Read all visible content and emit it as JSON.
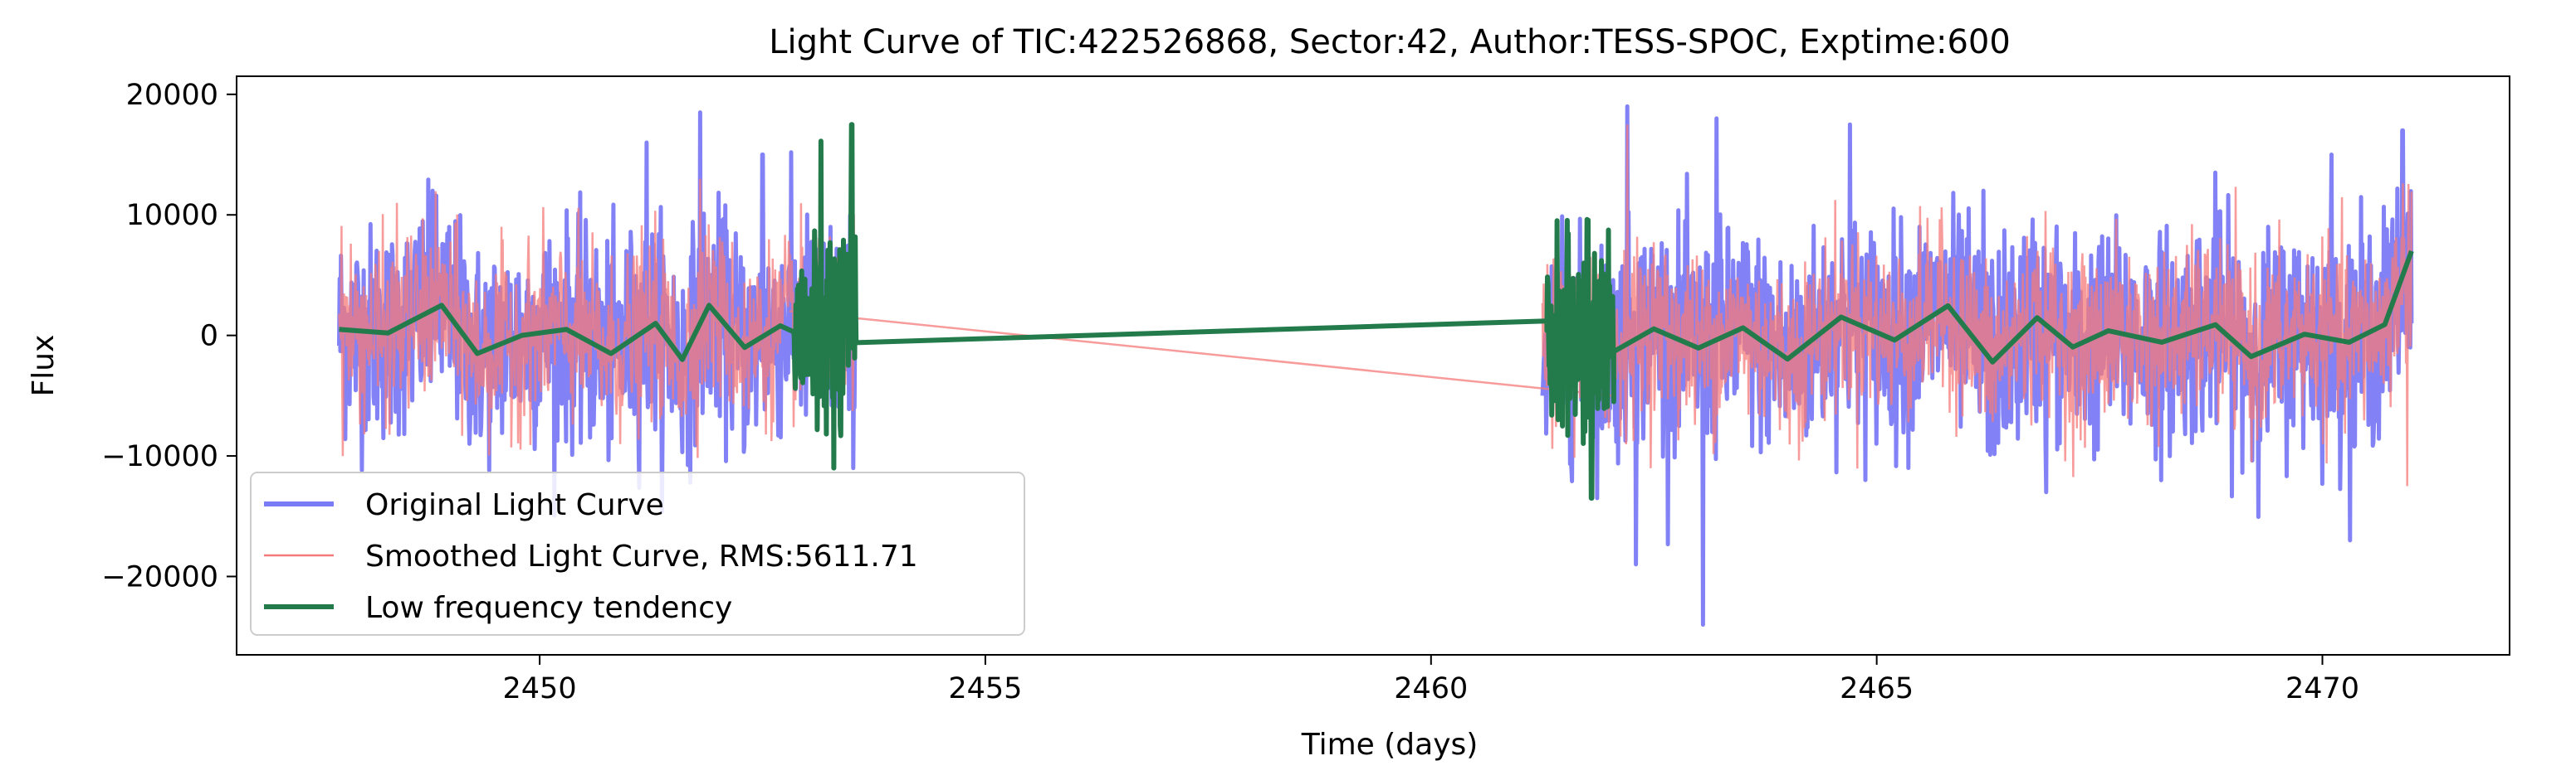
{
  "chart_data": {
    "type": "line",
    "title": "Light Curve of TIC:422526868, Sector:42, Author:TESS-SPOC, Exptime:600",
    "xlabel": "Time (days)",
    "ylabel": "Flux",
    "xlim": [
      2446.6,
      2472.1
    ],
    "ylim": [
      -26500,
      21500
    ],
    "xticks": [
      2450,
      2455,
      2460,
      2465,
      2470
    ],
    "yticks": [
      -20000,
      -10000,
      0,
      10000,
      20000
    ],
    "xtick_labels": [
      "2450",
      "2455",
      "2460",
      "2465",
      "2470"
    ],
    "ytick_labels": [
      "−20000",
      "−10000",
      "0",
      "10000",
      "20000"
    ],
    "grid": false,
    "legend_position": "lower-left",
    "segments": [
      {
        "x_start": 2447.75,
        "x_end": 2453.55
      },
      {
        "x_start": 2461.25,
        "x_end": 2471.0
      }
    ],
    "series": [
      {
        "name": "Original Light Curve",
        "color": "#7b7bf5",
        "style": "noisy",
        "amplitude_typical": 8000,
        "peaks": [
          [
            2448.8,
            12000
          ],
          [
            2451.2,
            16000
          ],
          [
            2451.8,
            18500
          ],
          [
            2452.5,
            15000
          ],
          [
            2462.2,
            19000
          ],
          [
            2462.3,
            -19000
          ],
          [
            2463.05,
            -24000
          ],
          [
            2463.2,
            18000
          ],
          [
            2464.7,
            17500
          ],
          [
            2466.2,
            12000
          ],
          [
            2466.9,
            -13000
          ],
          [
            2468.8,
            13500
          ],
          [
            2470.1,
            15000
          ],
          [
            2470.9,
            17000
          ]
        ]
      },
      {
        "name": "Smoothed Light Curve, RMS:5611.71",
        "color": "#f47a7a",
        "style": "noisy",
        "amplitude_typical": 6500,
        "bridge": [
          [
            2452.8,
            2000
          ],
          [
            2462.05,
            -5000
          ]
        ],
        "peaks": [
          [
            2470.95,
            -12500
          ],
          [
            2448.4,
            11000
          ],
          [
            2451.8,
            13000
          ],
          [
            2462.2,
            17500
          ]
        ]
      },
      {
        "name": "Low frequency tendency",
        "color": "#237b4b",
        "style": "smooth",
        "trend": [
          [
            2447.75,
            500
          ],
          [
            2448.3,
            200
          ],
          [
            2448.9,
            2500
          ],
          [
            2449.3,
            -1500
          ],
          [
            2449.8,
            0
          ],
          [
            2450.3,
            500
          ],
          [
            2450.8,
            -1500
          ],
          [
            2451.3,
            1000
          ],
          [
            2451.6,
            -2000
          ],
          [
            2451.9,
            2500
          ],
          [
            2452.3,
            -1000
          ],
          [
            2452.7,
            800
          ]
        ],
        "burst1": {
          "x_start": 2452.85,
          "x_end": 2453.55,
          "amplitude": 9000,
          "peak": 17500,
          "trough": -11000
        },
        "bridge": [
          [
            2453.55,
            -600
          ],
          [
            2461.3,
            1200
          ]
        ],
        "burst2": {
          "x_start": 2461.3,
          "x_end": 2462.05,
          "amplitude": 8000,
          "trough": -13500
        },
        "trend2": [
          [
            2462.05,
            -1000
          ],
          [
            2462.5,
            1000
          ],
          [
            2463.0,
            -1000
          ],
          [
            2463.5,
            500
          ],
          [
            2464.0,
            -2000
          ],
          [
            2464.6,
            1500
          ],
          [
            2465.2,
            0
          ],
          [
            2465.8,
            2000
          ],
          [
            2466.3,
            -2000
          ],
          [
            2466.8,
            1500
          ],
          [
            2467.2,
            -1000
          ],
          [
            2467.6,
            0
          ],
          [
            2468.2,
            -500
          ],
          [
            2468.8,
            1000
          ],
          [
            2469.2,
            -1500
          ],
          [
            2469.8,
            500
          ],
          [
            2470.3,
            -500
          ],
          [
            2470.7,
            1000
          ],
          [
            2471.0,
            7000
          ]
        ]
      }
    ]
  }
}
